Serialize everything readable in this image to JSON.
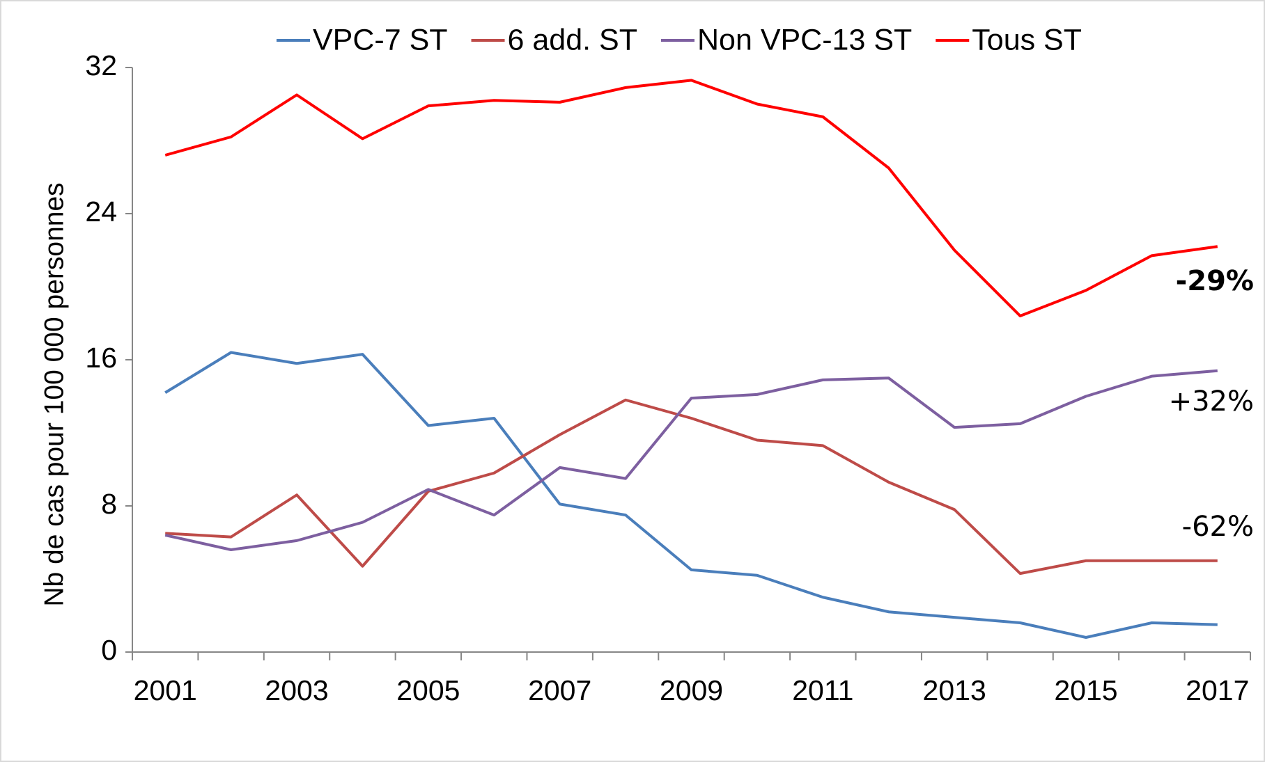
{
  "chart_data": {
    "type": "line",
    "y_label": "Nb de cas pour 100 000 personnes",
    "categories": [
      "2001",
      null,
      "2003",
      null,
      "2005",
      null,
      "2007",
      null,
      "2009",
      null,
      "2011",
      null,
      "2013",
      null,
      "2015",
      null,
      "2017"
    ],
    "series": [
      {
        "name": "VPC-7 ST",
        "color": "#4a7ebb",
        "values": [
          14.2,
          16.4,
          15.8,
          16.3,
          12.4,
          12.8,
          8.1,
          7.5,
          4.5,
          4.2,
          3.0,
          2.2,
          1.9,
          1.6,
          0.8,
          1.6,
          1.5
        ]
      },
      {
        "name": "6 add. ST",
        "color": "#be4b48",
        "values": [
          6.5,
          6.3,
          8.6,
          4.7,
          8.8,
          9.8,
          11.9,
          13.8,
          12.8,
          11.6,
          11.3,
          9.3,
          7.8,
          4.3,
          5.0,
          5.0,
          5.0
        ]
      },
      {
        "name": "Non VPC-13 ST",
        "color": "#7d5fa0",
        "values": [
          6.4,
          5.6,
          6.1,
          7.1,
          8.9,
          7.5,
          10.1,
          9.5,
          13.9,
          14.1,
          14.9,
          15.0,
          12.3,
          12.5,
          14.0,
          15.1,
          15.4
        ]
      },
      {
        "name": "Tous ST",
        "color": "#ff0000",
        "values": [
          27.2,
          28.2,
          30.5,
          28.1,
          29.9,
          30.2,
          30.1,
          30.9,
          31.3,
          30.0,
          29.3,
          26.5,
          22.0,
          18.4,
          19.8,
          21.7,
          22.2
        ]
      }
    ],
    "ylim": [
      0,
      32
    ],
    "yticks": [
      0,
      8,
      16,
      24,
      32
    ],
    "grid": false,
    "legend": "top",
    "annotations": [
      {
        "text": "-29%",
        "bold": true
      },
      {
        "text": "+32%",
        "bold": false
      },
      {
        "text": "-62%",
        "bold": false
      }
    ]
  }
}
